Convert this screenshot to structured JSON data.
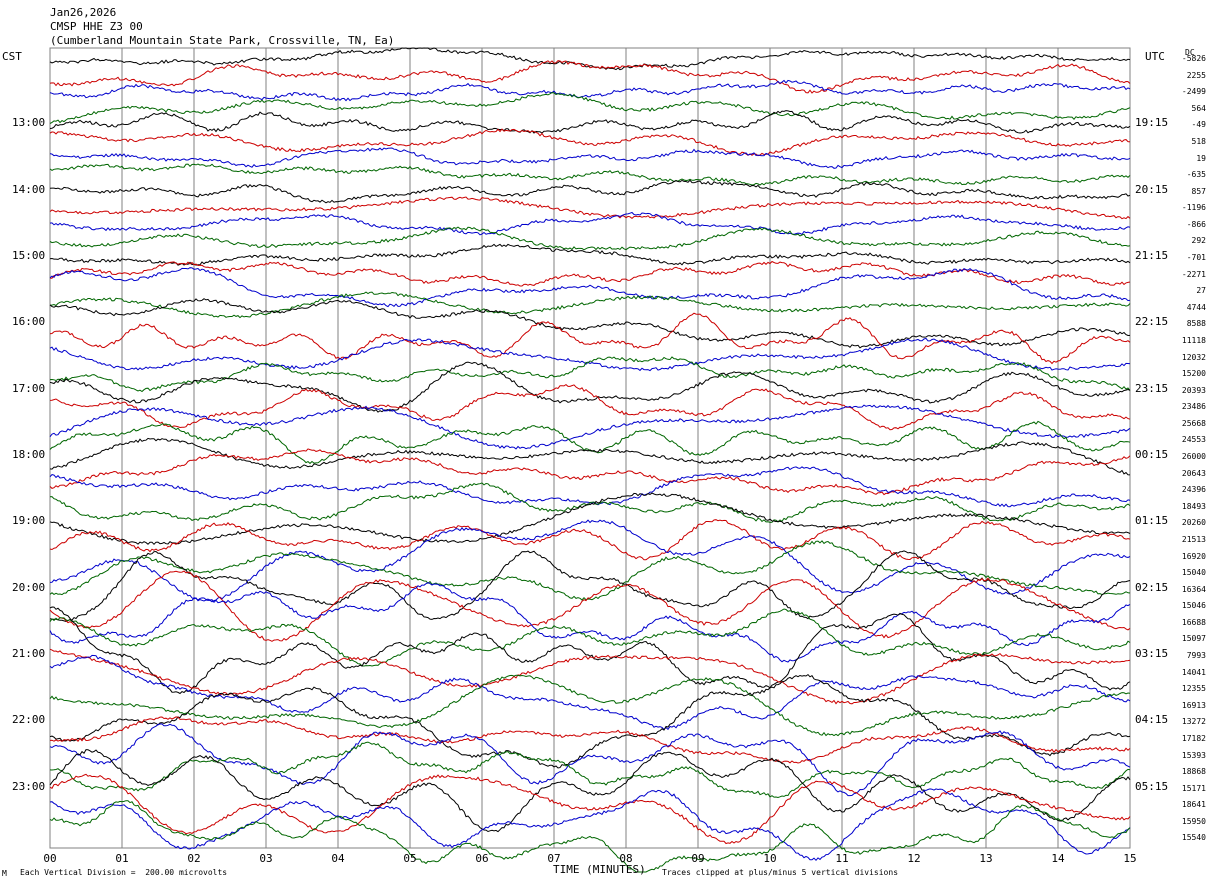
{
  "header": {
    "date": "Jan26,2026",
    "station": "CMSP HHE Z3 00",
    "location": "(Cumberland Mountain State Park, Crossville, TN, Ea)"
  },
  "left_tz": "CST",
  "right_tz": "UTC",
  "dc_label": "DC",
  "footer": {
    "left_note": "Each Vertical Division =  200.00 microvolts",
    "xlabel": "TIME (MINUTES)",
    "right_note": "Traces clipped at plus/minus 5 vertical divisions",
    "corner_mark": "M"
  },
  "colors": {
    "trace_cycle": [
      "#000000",
      "#cc0000",
      "#0000cc",
      "#006600"
    ],
    "grid": "#808080"
  },
  "chart_data": {
    "type": "line",
    "title": "CMSP HHE Z3 00",
    "xlabel": "TIME (MINUTES)",
    "xlim": [
      0,
      15
    ],
    "x_ticks": [
      "00",
      "01",
      "02",
      "03",
      "04",
      "05",
      "06",
      "07",
      "08",
      "09",
      "10",
      "11",
      "12",
      "13",
      "14",
      "15"
    ],
    "grid": true,
    "left_hour_labels": [
      "13:00",
      "14:00",
      "15:00",
      "16:00",
      "17:00",
      "18:00",
      "19:00",
      "20:00",
      "21:00",
      "22:00",
      "23:00"
    ],
    "right_hour_labels": [
      "19:15",
      "20:15",
      "21:15",
      "22:15",
      "23:15",
      "00:15",
      "01:15",
      "02:15",
      "03:15",
      "04:15",
      "05:15"
    ],
    "trace_count": 48,
    "dc_offsets": [
      "-5826",
      "2255",
      "-2499",
      "564",
      "-49",
      "518",
      "19",
      "-635",
      "857",
      "-1196",
      "-866",
      "292",
      "-701",
      "-2271",
      "27",
      "4744",
      "8588",
      "11118",
      "12032",
      "15200",
      "20393",
      "23486",
      "25668",
      "24553",
      "26000",
      "20643",
      "24396",
      "18493",
      "20260",
      "21513",
      "16920",
      "15040",
      "16364",
      "15046",
      "16688",
      "15097",
      "7993",
      "14041",
      "12355",
      "16913",
      "13272",
      "17182",
      "15393",
      "18868",
      "15171",
      "18641",
      "15950",
      "15540"
    ]
  }
}
